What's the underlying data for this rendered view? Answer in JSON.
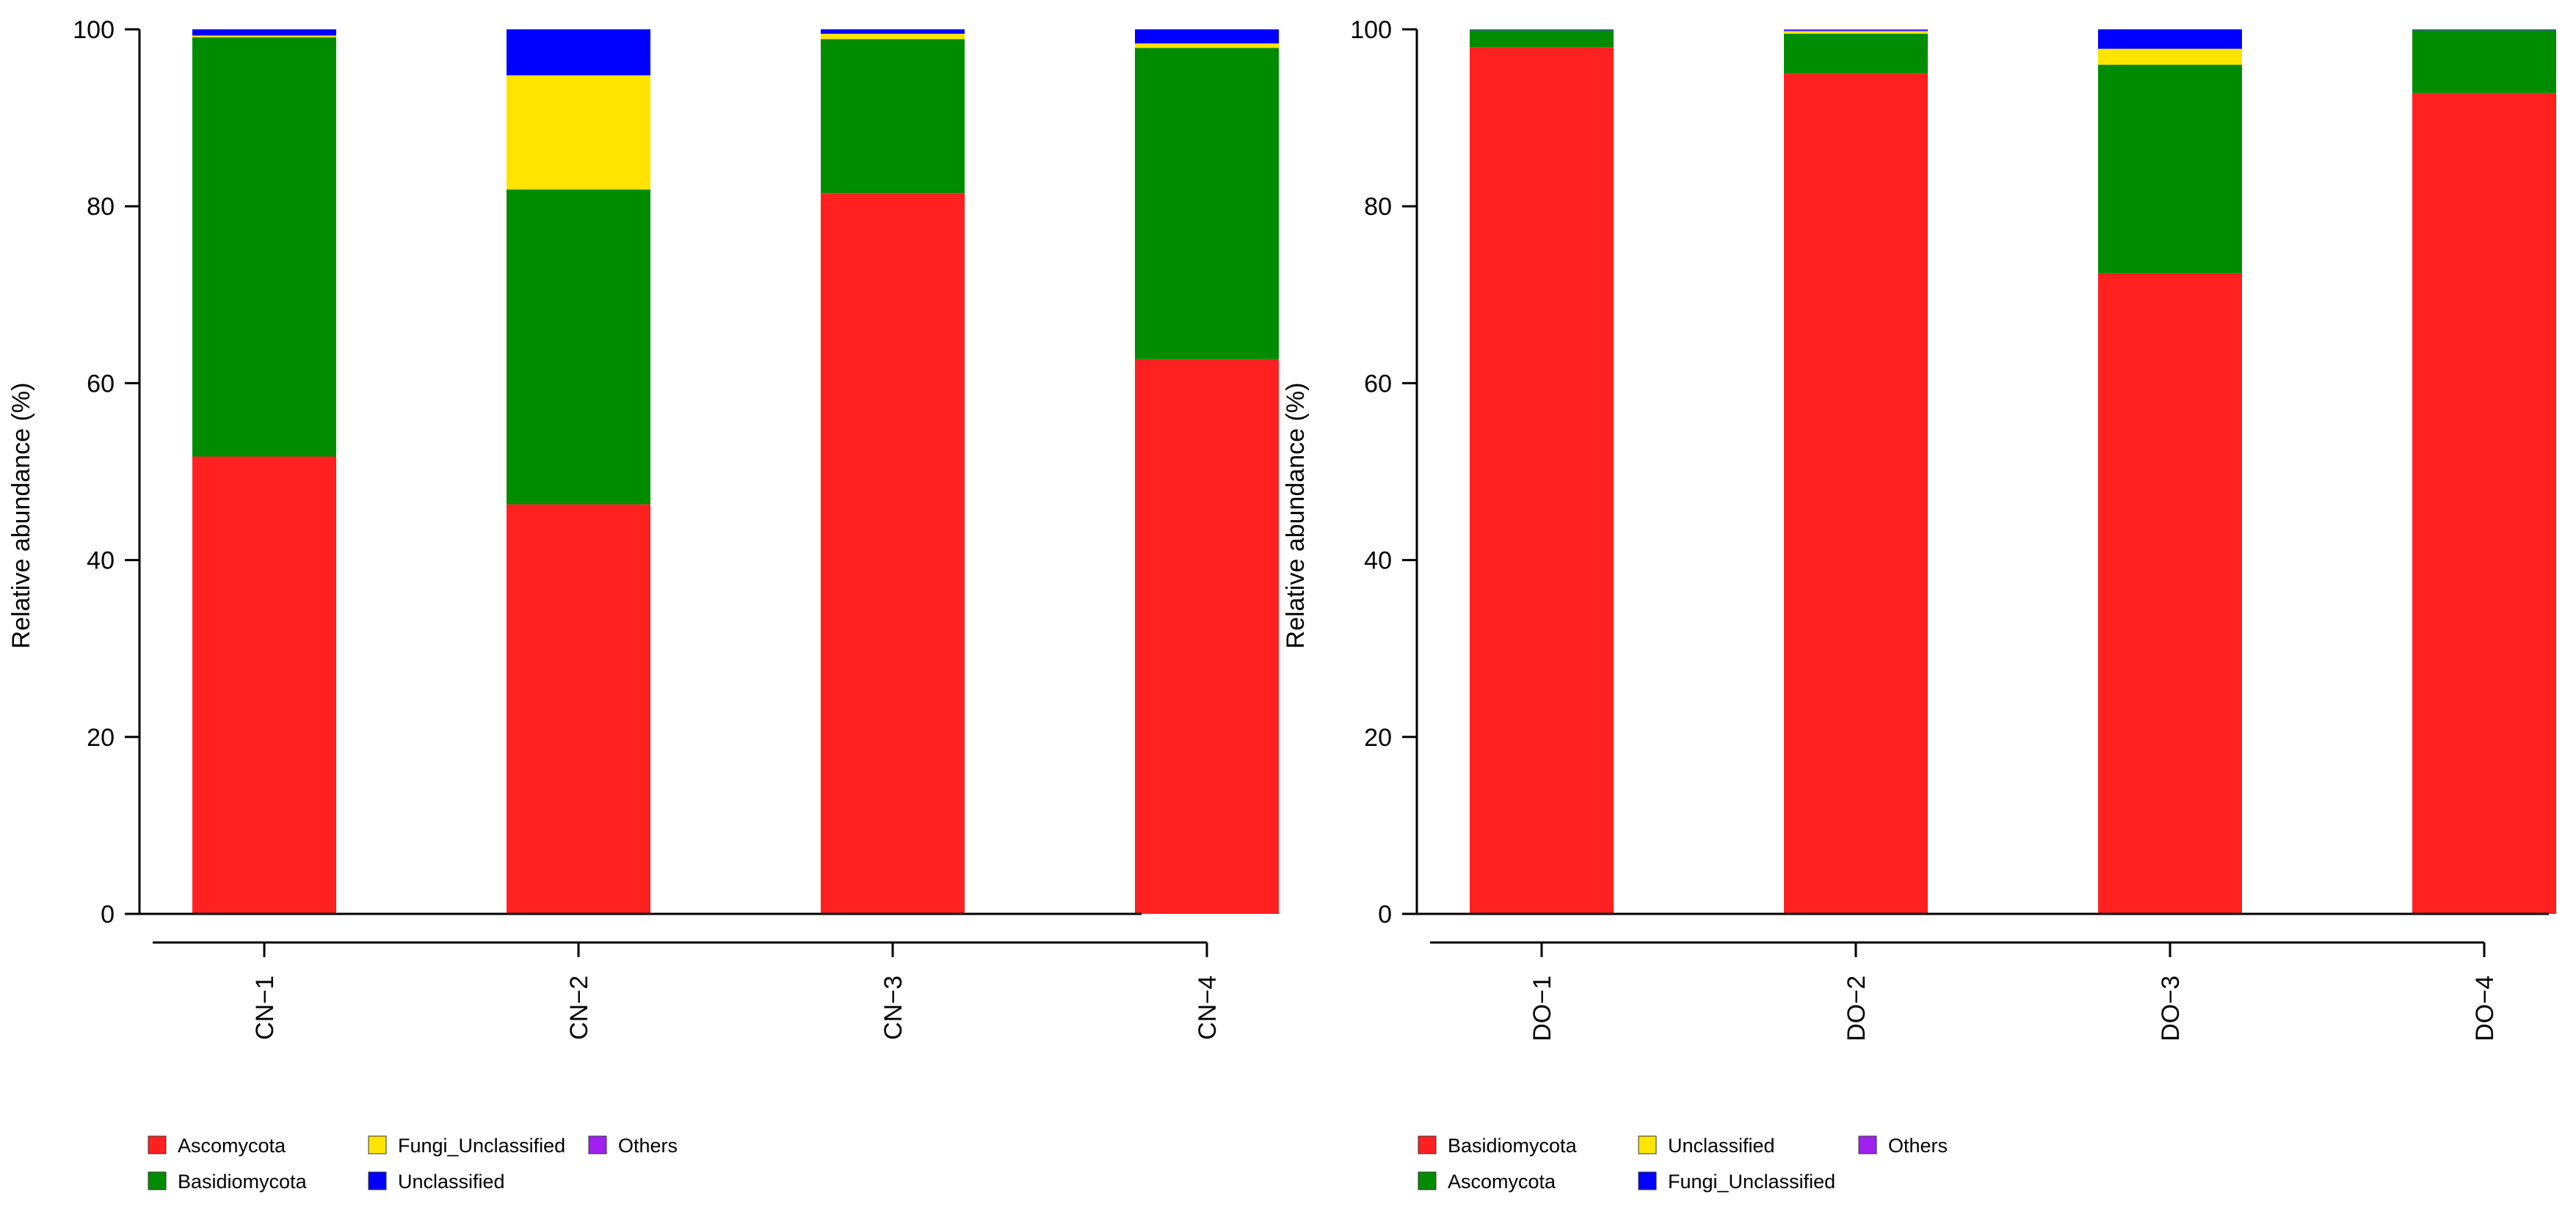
{
  "chart_data": [
    {
      "type": "bar",
      "stacked": true,
      "title": "",
      "xlabel": "",
      "ylabel": "Relative abundance (%)",
      "ylim": [
        0,
        100
      ],
      "yticks": [
        0,
        20,
        40,
        60,
        80,
        100
      ],
      "categories": [
        "CN−1",
        "CN−2",
        "CN−3",
        "CN−4"
      ],
      "series": [
        {
          "name": "Ascomycota",
          "color": "#ff2020",
          "values": [
            51.7,
            46.3,
            81.5,
            62.7
          ]
        },
        {
          "name": "Basidiomycota",
          "color": "#008c00",
          "values": [
            47.4,
            35.6,
            17.4,
            35.2
          ]
        },
        {
          "name": "Fungi_Unclassified",
          "color": "#ffe400",
          "values": [
            0.2,
            12.9,
            0.6,
            0.5
          ]
        },
        {
          "name": "Unclassified",
          "color": "#0000ff",
          "values": [
            0.7,
            5.2,
            0.5,
            1.6
          ]
        },
        {
          "name": "Others",
          "color": "#a020f0",
          "values": [
            0.0,
            0.0,
            0.0,
            0.0
          ]
        }
      ],
      "legend": [
        {
          "name": "Ascomycota",
          "color": "#ff2020"
        },
        {
          "name": "Fungi_Unclassified",
          "color": "#ffe400"
        },
        {
          "name": "Others",
          "color": "#a020f0"
        },
        {
          "name": "Basidiomycota",
          "color": "#008c00"
        },
        {
          "name": "Unclassified",
          "color": "#0000ff"
        }
      ],
      "legend_position": "bottom"
    },
    {
      "type": "bar",
      "stacked": true,
      "title": "",
      "xlabel": "",
      "ylabel": "Relative abundance (%)",
      "ylim": [
        0,
        100
      ],
      "yticks": [
        0,
        20,
        40,
        60,
        80,
        100
      ],
      "categories": [
        "DO−1",
        "DO−2",
        "DO−3",
        "DO−4"
      ],
      "series": [
        {
          "name": "Basidiomycota",
          "color": "#ff2020",
          "values": [
            98.0,
            95.0,
            72.4,
            92.8
          ]
        },
        {
          "name": "Ascomycota",
          "color": "#008c00",
          "values": [
            1.9,
            4.5,
            23.6,
            7.1
          ]
        },
        {
          "name": "Unclassified",
          "color": "#ffe400",
          "values": [
            0.0,
            0.3,
            1.8,
            0.0
          ]
        },
        {
          "name": "Fungi_Unclassified",
          "color": "#0000ff",
          "values": [
            0.05,
            0.1,
            2.2,
            0.05
          ]
        },
        {
          "name": "Others",
          "color": "#a020f0",
          "values": [
            0.05,
            0.1,
            0.0,
            0.05
          ]
        }
      ],
      "legend": [
        {
          "name": "Basidiomycota",
          "color": "#ff2020"
        },
        {
          "name": "Unclassified",
          "color": "#ffe400"
        },
        {
          "name": "Others",
          "color": "#a020f0"
        },
        {
          "name": "Ascomycota",
          "color": "#008c00"
        },
        {
          "name": "Fungi_Unclassified",
          "color": "#0000ff"
        }
      ],
      "legend_position": "bottom"
    }
  ]
}
